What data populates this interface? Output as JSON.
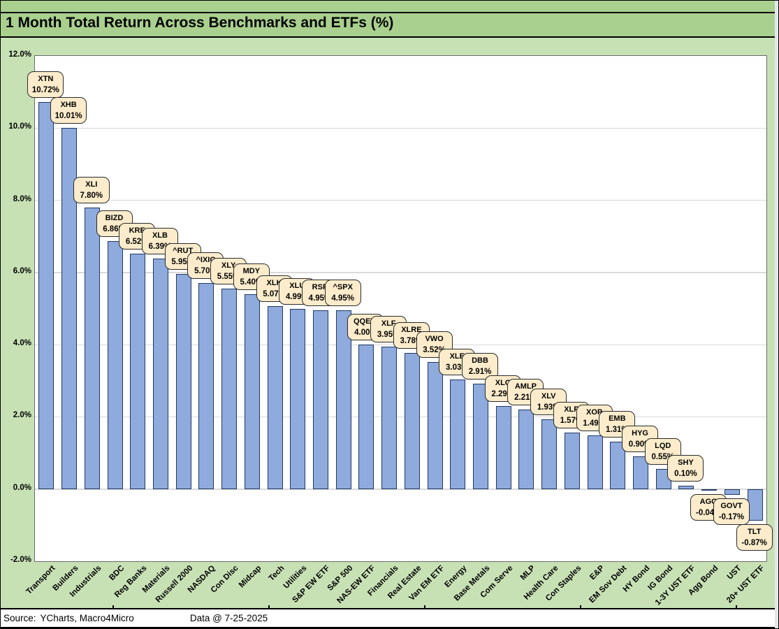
{
  "title": "1 Month Total Return Across Benchmarks and ETFs (%)",
  "footer": {
    "source_label": "Source:",
    "source_value": "YCharts, Macro4Micro",
    "data_date": "Data @ 7-25-2025"
  },
  "colors": {
    "page_background": "#c7e1b5",
    "title_bar": "#a9d08e",
    "plot_background": "#ffffff",
    "bar_fill": "#8faadc",
    "bar_border": "#1f3864",
    "callout_fill": "#fceccb",
    "gridline": "#d9d9d9"
  },
  "chart_data": {
    "type": "bar",
    "title": "1 Month Total Return Across Benchmarks and ETFs (%)",
    "xlabel": "",
    "ylabel": "",
    "ylim": [
      -2,
      12
    ],
    "grid": true,
    "legend": "none",
    "yticks": [
      {
        "value": 12,
        "label": "12.0%"
      },
      {
        "value": 10,
        "label": "10.0%"
      },
      {
        "value": 8,
        "label": "8.0%"
      },
      {
        "value": 6,
        "label": "6.0%"
      },
      {
        "value": 4,
        "label": "4.0%"
      },
      {
        "value": 2,
        "label": "2.0%"
      },
      {
        "value": 0,
        "label": "0.0%"
      },
      {
        "value": -2,
        "label": "-2.0%"
      }
    ],
    "ygrid_values": [
      10,
      8,
      6,
      4,
      2,
      0
    ],
    "points": [
      {
        "category": "Transport",
        "ticker": "XTN",
        "value": 10.72,
        "label": "10.72%"
      },
      {
        "category": "Builders",
        "ticker": "XHB",
        "value": 10.01,
        "label": "10.01%"
      },
      {
        "category": "Industrials",
        "ticker": "XLI",
        "value": 7.8,
        "label": "7.80%"
      },
      {
        "category": "BDC",
        "ticker": "BIZD",
        "value": 6.86,
        "label": "6.86%"
      },
      {
        "category": "Reg Banks",
        "ticker": "KRE",
        "value": 6.52,
        "label": "6.52%"
      },
      {
        "category": "Materials",
        "ticker": "XLB",
        "value": 6.39,
        "label": "6.39%"
      },
      {
        "category": "Russell 2000",
        "ticker": "^RUT",
        "value": 5.95,
        "label": "5.95%"
      },
      {
        "category": "NASDAQ",
        "ticker": "^IXIC",
        "value": 5.7,
        "label": "5.70%"
      },
      {
        "category": "Con Disc",
        "ticker": "XLY",
        "value": 5.55,
        "label": "5.55%"
      },
      {
        "category": "Midcap",
        "ticker": "MDY",
        "value": 5.4,
        "label": "5.40%"
      },
      {
        "category": "Tech",
        "ticker": "XLK",
        "value": 5.07,
        "label": "5.07%"
      },
      {
        "category": "Utilities",
        "ticker": "XLU",
        "value": 4.99,
        "label": "4.99%"
      },
      {
        "category": "S&P EW ETF",
        "ticker": "RSP",
        "value": 4.95,
        "label": "4.95%"
      },
      {
        "category": "S&P 500",
        "ticker": "^SPX",
        "value": 4.95,
        "label": "4.95%"
      },
      {
        "category": "NAS-EW ETF",
        "ticker": "QQEW",
        "value": 4.0,
        "label": "4.00%"
      },
      {
        "category": "Financials",
        "ticker": "XLF",
        "value": 3.95,
        "label": "3.95%"
      },
      {
        "category": "Real Estate",
        "ticker": "XLRE",
        "value": 3.78,
        "label": "3.78%"
      },
      {
        "category": "Van EM ETF",
        "ticker": "VWO",
        "value": 3.52,
        "label": "3.52%"
      },
      {
        "category": "Energy",
        "ticker": "XLE",
        "value": 3.03,
        "label": "3.03%"
      },
      {
        "category": "Base Metals",
        "ticker": "DBB",
        "value": 2.91,
        "label": "2.91%"
      },
      {
        "category": "Com Serve",
        "ticker": "XLC",
        "value": 2.29,
        "label": "2.29%"
      },
      {
        "category": "MLP",
        "ticker": "AMLP",
        "value": 2.21,
        "label": "2.21%"
      },
      {
        "category": "Health Care",
        "ticker": "XLV",
        "value": 1.93,
        "label": "1.93%"
      },
      {
        "category": "Con Staples",
        "ticker": "XLP",
        "value": 1.57,
        "label": "1.57%"
      },
      {
        "category": "E&P",
        "ticker": "XOP",
        "value": 1.49,
        "label": "1.49%"
      },
      {
        "category": "EM Sov Debt",
        "ticker": "EMB",
        "value": 1.31,
        "label": "1.31%"
      },
      {
        "category": "HY Bond",
        "ticker": "HYG",
        "value": 0.9,
        "label": "0.90%"
      },
      {
        "category": "IG Bond",
        "ticker": "LQD",
        "value": 0.55,
        "label": "0.55%"
      },
      {
        "category": "1-3Y UST ETF",
        "ticker": "SHY",
        "value": 0.1,
        "label": "0.10%"
      },
      {
        "category": "Agg Bond",
        "ticker": "AGG",
        "value": -0.04,
        "label": "-0.04%"
      },
      {
        "category": "UST",
        "ticker": "GOVT",
        "value": -0.17,
        "label": "-0.17%"
      },
      {
        "category": "20+ UST ETF",
        "ticker": "TLT",
        "value": -0.87,
        "label": "-0.87%"
      }
    ]
  }
}
